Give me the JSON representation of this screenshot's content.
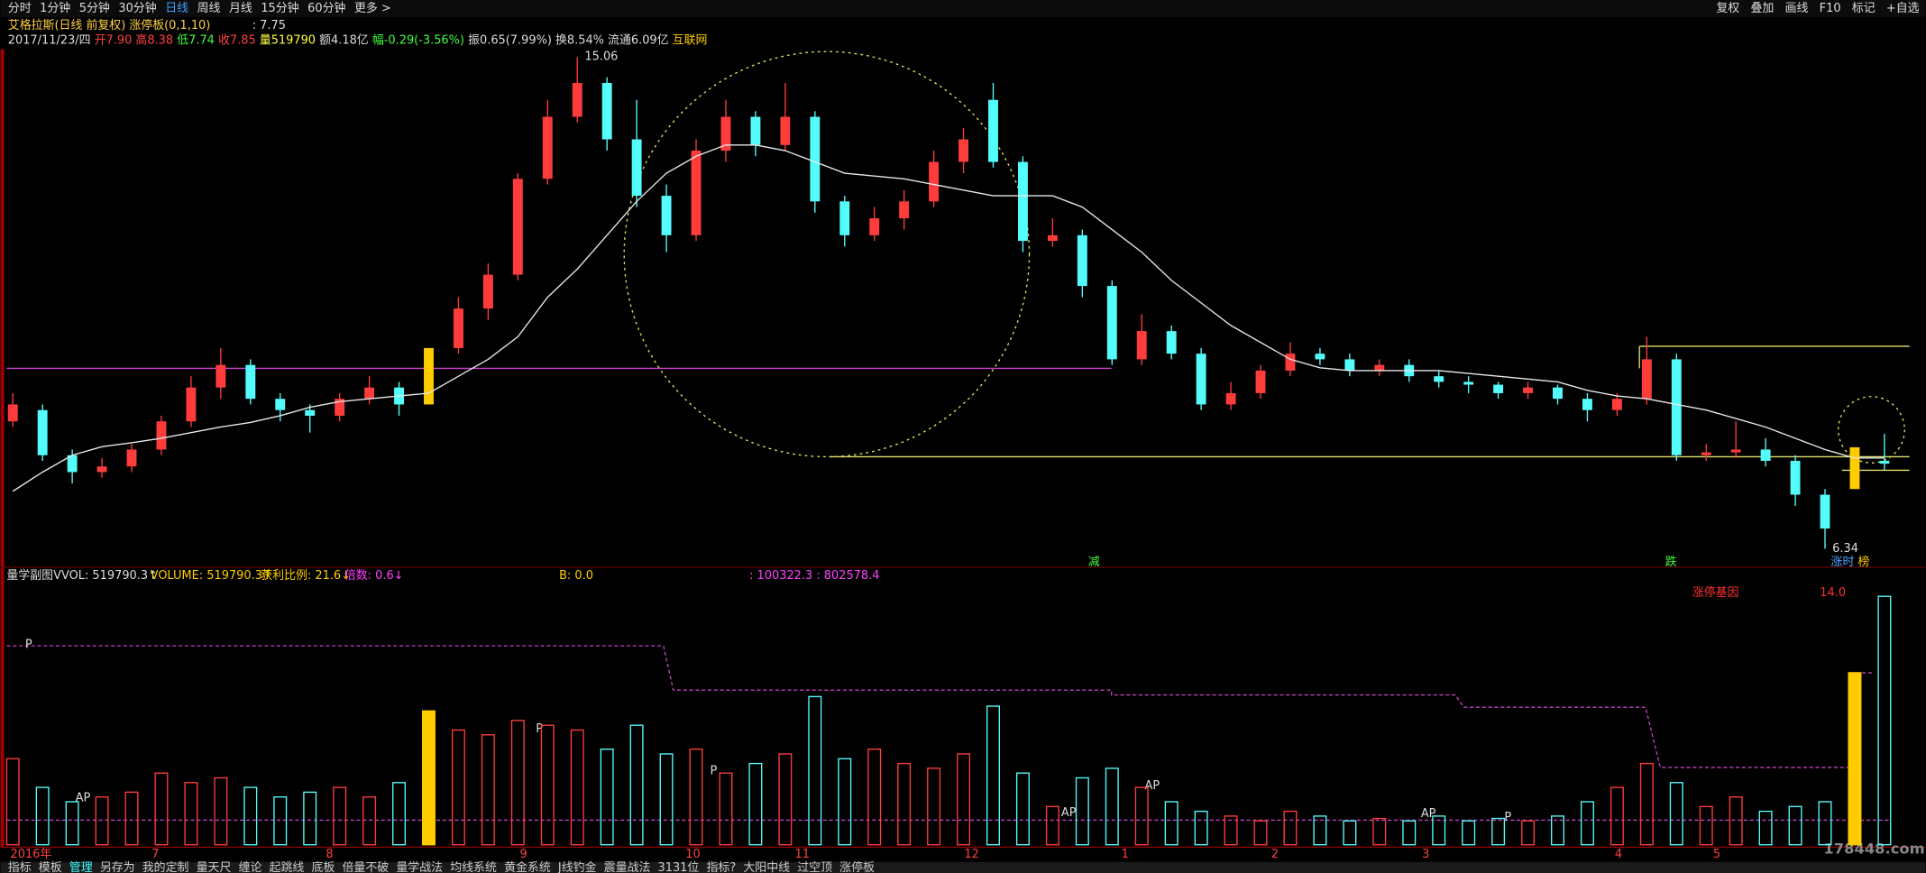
{
  "chart_data": {
    "type": "candlestick",
    "menu": [
      "分时",
      "1分钟",
      "5分钟",
      "30分钟",
      "日线",
      "周线",
      "月线",
      "15分钟",
      "60分钟",
      "更多 >"
    ],
    "tools": [
      "复权",
      "叠加",
      "画线",
      "F10",
      "标记",
      "+自选"
    ],
    "title": "艾格拉斯(日线 前复权) 涨停板(0,1,10)",
    "title_value": ": 7.75",
    "info": [
      "2017/11/23/四",
      "开7.90",
      "高8.38",
      "低7.74",
      "收7.85",
      "量519790",
      "额4.18亿",
      "幅-0.29(-3.56%)",
      "振0.65(7.99%)",
      "换8.54%",
      "流通6.09亿",
      "互联网"
    ],
    "volume_header": [
      "量学副图",
      "VVOL: 519790.3↑",
      "VOLUME: 519790.3↑",
      "获利比例: 21.6↓",
      "倍数: 0.6↓",
      "B: 0.0",
      ": 100322.3 : 802578.4"
    ],
    "gene_label": "涨停基因",
    "gene_value": "14.0",
    "signals": [
      "减",
      "跌",
      "涨时",
      "榜"
    ],
    "months": [
      "2016年",
      "7",
      "8",
      "9",
      "10",
      "11",
      "12",
      "1",
      "2",
      "3",
      "4",
      "5"
    ],
    "tabs": [
      "指标",
      "模板",
      "管理",
      "另存为",
      "我的定制",
      "量天尺",
      "缠论",
      "起跳线",
      "底板",
      "倍量不破",
      "量学战法",
      "均线系统",
      "黄金系统",
      "J线钓金",
      "震量战法",
      "3131位",
      "指标?",
      "大阳中线",
      "过空顶",
      "涨停板"
    ],
    "markers": [
      "P",
      "P",
      "P",
      "AP",
      "AP",
      "AP",
      "AP",
      "P"
    ],
    "watermark": "178448.com",
    "ylim": [
      6.1,
      15.2
    ],
    "vlim": [
      0,
      560000
    ],
    "colors": {
      "up": "#ff3c3c",
      "down": "#54fcfc",
      "limit": "#ffcc00",
      "ma": "#e8e8e8"
    },
    "limit_up": [
      14,
      62
    ],
    "candles": [
      [
        8.6,
        9.1,
        8.5,
        8.9
      ],
      [
        8.8,
        8.9,
        7.9,
        8.0
      ],
      [
        8.0,
        8.1,
        7.5,
        7.7
      ],
      [
        7.7,
        7.95,
        7.6,
        7.8
      ],
      [
        7.8,
        8.2,
        7.7,
        8.1
      ],
      [
        8.1,
        8.7,
        8.0,
        8.6
      ],
      [
        8.6,
        9.4,
        8.5,
        9.2
      ],
      [
        9.2,
        9.9,
        9.0,
        9.6
      ],
      [
        9.6,
        9.7,
        8.9,
        9.0
      ],
      [
        9.0,
        9.1,
        8.6,
        8.8
      ],
      [
        8.8,
        8.9,
        8.4,
        8.7
      ],
      [
        8.7,
        9.1,
        8.6,
        9.0
      ],
      [
        9.0,
        9.4,
        8.9,
        9.2
      ],
      [
        9.2,
        9.3,
        8.7,
        8.9
      ],
      [
        8.9,
        9.9,
        8.9,
        9.9
      ],
      [
        9.9,
        10.8,
        9.8,
        10.6
      ],
      [
        10.6,
        11.4,
        10.4,
        11.2
      ],
      [
        11.2,
        13.0,
        11.1,
        12.9
      ],
      [
        12.9,
        14.3,
        12.8,
        14.0
      ],
      [
        14.0,
        15.06,
        13.9,
        14.6
      ],
      [
        14.6,
        14.7,
        13.4,
        13.6
      ],
      [
        13.6,
        14.3,
        12.4,
        12.6
      ],
      [
        12.6,
        12.8,
        11.6,
        11.9
      ],
      [
        11.9,
        13.6,
        11.8,
        13.4
      ],
      [
        13.4,
        14.3,
        13.2,
        14.0
      ],
      [
        14.0,
        14.1,
        13.3,
        13.5
      ],
      [
        13.5,
        14.6,
        13.4,
        14.0
      ],
      [
        14.0,
        14.1,
        12.3,
        12.5
      ],
      [
        12.5,
        12.6,
        11.7,
        11.9
      ],
      [
        11.9,
        12.4,
        11.8,
        12.2
      ],
      [
        12.2,
        12.7,
        12.0,
        12.5
      ],
      [
        12.5,
        13.4,
        12.4,
        13.2
      ],
      [
        13.2,
        13.8,
        13.0,
        13.6
      ],
      [
        14.3,
        14.6,
        13.1,
        13.2
      ],
      [
        13.2,
        13.3,
        11.6,
        11.8
      ],
      [
        11.8,
        12.2,
        11.7,
        11.9
      ],
      [
        11.9,
        12.0,
        10.8,
        11.0
      ],
      [
        11.0,
        11.1,
        9.6,
        9.7
      ],
      [
        9.7,
        10.5,
        9.6,
        10.2
      ],
      [
        10.2,
        10.3,
        9.7,
        9.8
      ],
      [
        9.8,
        9.9,
        8.8,
        8.9
      ],
      [
        8.9,
        9.3,
        8.8,
        9.1
      ],
      [
        9.1,
        9.6,
        9.0,
        9.5
      ],
      [
        9.5,
        10.0,
        9.4,
        9.8
      ],
      [
        9.8,
        9.9,
        9.6,
        9.7
      ],
      [
        9.7,
        9.8,
        9.4,
        9.5
      ],
      [
        9.5,
        9.7,
        9.4,
        9.6
      ],
      [
        9.6,
        9.7,
        9.3,
        9.4
      ],
      [
        9.4,
        9.5,
        9.2,
        9.3
      ],
      [
        9.3,
        9.4,
        9.1,
        9.25
      ],
      [
        9.25,
        9.3,
        9.0,
        9.1
      ],
      [
        9.1,
        9.3,
        9.0,
        9.2
      ],
      [
        9.2,
        9.25,
        8.9,
        9.0
      ],
      [
        9.0,
        9.1,
        8.6,
        8.8
      ],
      [
        8.8,
        9.1,
        8.7,
        9.0
      ],
      [
        9.0,
        10.1,
        8.9,
        9.7
      ],
      [
        9.7,
        9.8,
        7.9,
        8.0
      ],
      [
        8.0,
        8.2,
        7.9,
        8.05
      ],
      [
        8.05,
        8.6,
        7.95,
        8.1
      ],
      [
        8.1,
        8.3,
        7.8,
        7.9
      ],
      [
        7.9,
        8.0,
        7.1,
        7.3
      ],
      [
        7.3,
        7.4,
        6.34,
        6.7
      ],
      [
        7.4,
        8.14,
        7.4,
        8.14
      ],
      [
        7.9,
        8.38,
        7.74,
        7.85
      ]
    ],
    "ma": [
      7.36,
      7.7,
      8.0,
      8.15,
      8.22,
      8.3,
      8.4,
      8.5,
      8.58,
      8.7,
      8.85,
      8.95,
      9.0,
      9.05,
      9.1,
      9.4,
      9.7,
      10.1,
      10.8,
      11.3,
      11.9,
      12.5,
      13.0,
      13.3,
      13.5,
      13.5,
      13.4,
      13.2,
      13.0,
      12.95,
      12.9,
      12.8,
      12.7,
      12.6,
      12.6,
      12.6,
      12.4,
      12.0,
      11.6,
      11.1,
      10.7,
      10.3,
      10.0,
      9.7,
      9.55,
      9.5,
      9.5,
      9.5,
      9.5,
      9.45,
      9.4,
      9.35,
      9.3,
      9.15,
      9.05,
      9.0,
      8.9,
      8.8,
      8.65,
      8.5,
      8.3,
      8.1,
      7.95,
      7.95
    ],
    "volume": [
      180000,
      120000,
      90000,
      100000,
      110000,
      150000,
      130000,
      140000,
      120000,
      100000,
      110000,
      120000,
      100000,
      130000,
      280000,
      240000,
      230000,
      260000,
      250000,
      240000,
      200000,
      250000,
      190000,
      200000,
      150000,
      170000,
      190000,
      310000,
      180000,
      200000,
      170000,
      160000,
      190000,
      290000,
      150000,
      80000,
      140000,
      160000,
      120000,
      90000,
      70000,
      60000,
      50000,
      70000,
      60000,
      50000,
      55000,
      50000,
      60000,
      50000,
      55000,
      50000,
      60000,
      90000,
      120000,
      170000,
      130000,
      80000,
      100000,
      70000,
      80000,
      90000,
      360000,
      519790.3
    ]
  }
}
